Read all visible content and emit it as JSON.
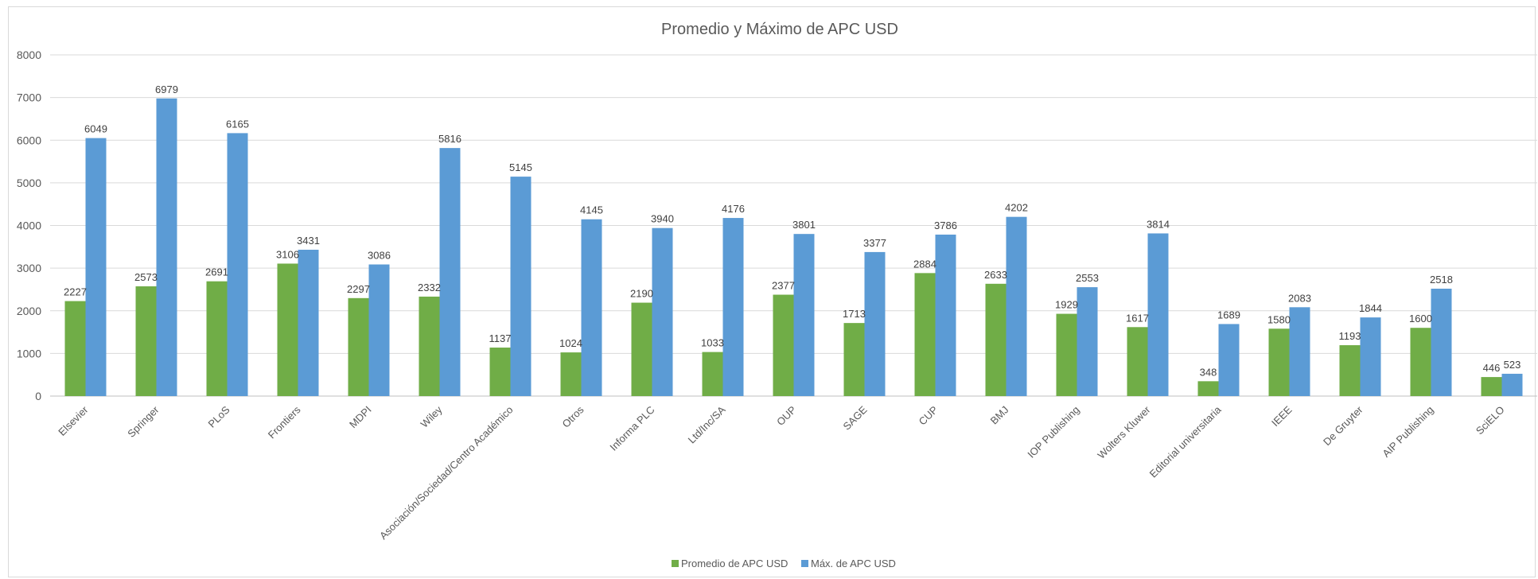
{
  "chart_data": {
    "type": "bar",
    "title": "Promedio y Máximo de APC USD",
    "xlabel": "",
    "ylabel": "",
    "ylim": [
      0,
      8000
    ],
    "yticks": [
      0,
      1000,
      2000,
      3000,
      4000,
      5000,
      6000,
      7000,
      8000
    ],
    "grid": true,
    "legend_position": "bottom",
    "categories": [
      "Elsevier",
      "Springer",
      "PLoS",
      "Frontiers",
      "MDPI",
      "Wiley",
      "Asociación/Sociedad/Centro Académico",
      "Otros",
      "Informa PLC",
      "Ltd/Inc/SA",
      "OUP",
      "SAGE",
      "CUP",
      "BMJ",
      "IOP Publishing",
      "Wolters Kluwer",
      "Editorial universitaria",
      "IEEE",
      "De Gruyter",
      "AIP Publishing",
      "SciELO"
    ],
    "series": [
      {
        "name": "Promedio de APC USD",
        "color": "#70ad47",
        "values": [
          2227,
          2573,
          2691,
          3106,
          2297,
          2332,
          1137,
          1024,
          2190,
          1033,
          2377,
          1713,
          2884,
          2633,
          1929,
          1617,
          348,
          1580,
          1193,
          1600,
          446
        ]
      },
      {
        "name": "Máx. de APC USD",
        "color": "#5b9bd5",
        "values": [
          6049,
          6979,
          6165,
          3431,
          3086,
          5816,
          5145,
          4145,
          3940,
          4176,
          3801,
          3377,
          3786,
          4202,
          2553,
          3814,
          1689,
          2083,
          1844,
          2518,
          523
        ]
      }
    ]
  }
}
